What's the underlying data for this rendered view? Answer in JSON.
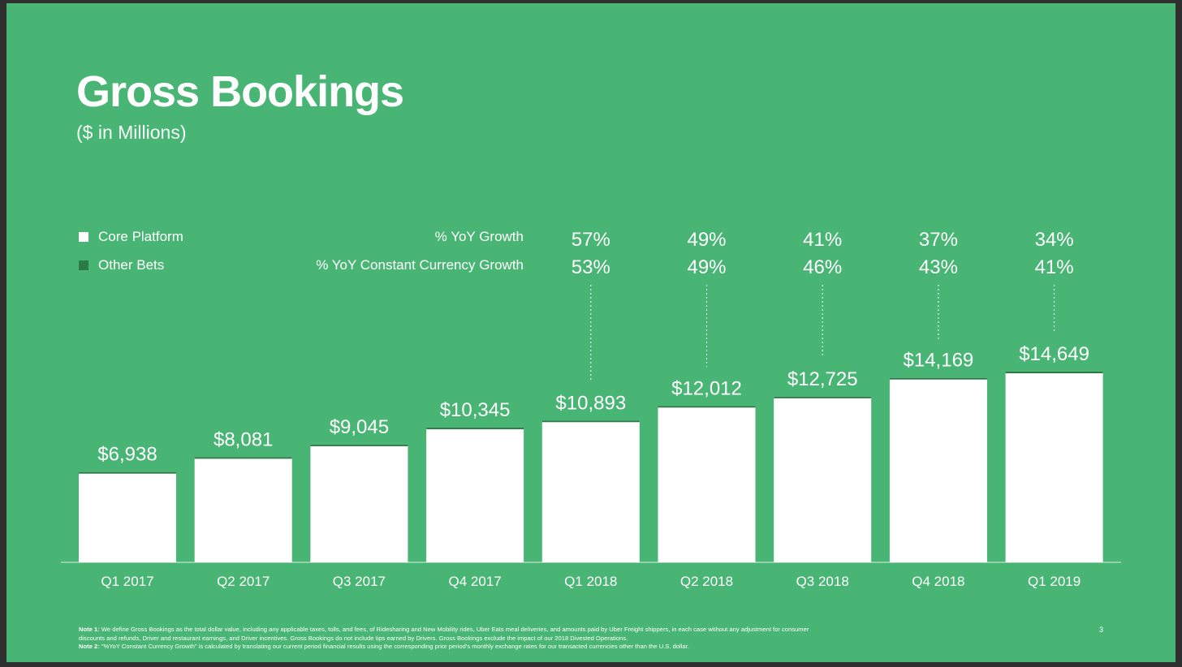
{
  "slide": {
    "title": "Gross Bookings",
    "subtitle": "($ in Millions)",
    "page_number": "3",
    "colors": {
      "background": "#49b575",
      "bar": "#ffffff",
      "other_bets": "#2d7a49",
      "frame": "#2f2f2f"
    }
  },
  "legend": {
    "core_platform": "Core Platform",
    "other_bets": "Other Bets"
  },
  "growth_labels": {
    "yoy": "% YoY Growth",
    "yoy_cc": "% YoY Constant Currency Growth"
  },
  "footnotes": {
    "note1_label": "Note 1:",
    "note1_text": " We define Gross Bookings as the total dollar value, including any applicable taxes, tolls, and fees, of Ridesharing and New Mobility rides, Uber Eats meal deliveries, and amounts paid by Uber Freight shippers, in each case without any adjustment for consumer discounts and refunds, Driver and restaurant earnings, and Driver incentives. Gross Bookings do not include tips earned by Drivers. Gross Bookings exclude the impact of our 2018 Divested Operations.",
    "note2_label": "Note 2:",
    "note2_text": " \"%YoY Constant Currency Growth\" is calculated by translating our current period financial results using the corresponding prior period's monthly exchange rates for our transacted currencies other than the U.S. dollar."
  },
  "chart_data": {
    "type": "bar",
    "title": "Gross Bookings",
    "subtitle": "($ in Millions)",
    "categories": [
      "Q1 2017",
      "Q2 2017",
      "Q3 2017",
      "Q4 2017",
      "Q1 2018",
      "Q2 2018",
      "Q3 2018",
      "Q4 2018",
      "Q1 2019"
    ],
    "series": [
      {
        "name": "Core Platform",
        "values": [
          6938,
          8081,
          9045,
          10345,
          10893,
          12012,
          12725,
          14169,
          14649
        ],
        "labels": [
          "$6,938",
          "$8,081",
          "$9,045",
          "$10,345",
          "$10,893",
          "$12,012",
          "$12,725",
          "$14,169",
          "$14,649"
        ]
      }
    ],
    "yoy_growth": [
      "",
      "",
      "",
      "",
      "57%",
      "49%",
      "41%",
      "37%",
      "34%"
    ],
    "yoy_constant_currency_growth": [
      "",
      "",
      "",
      "",
      "53%",
      "49%",
      "46%",
      "43%",
      "41%"
    ],
    "ylim": [
      0,
      14649
    ],
    "grid": false,
    "legend": "top-left"
  }
}
